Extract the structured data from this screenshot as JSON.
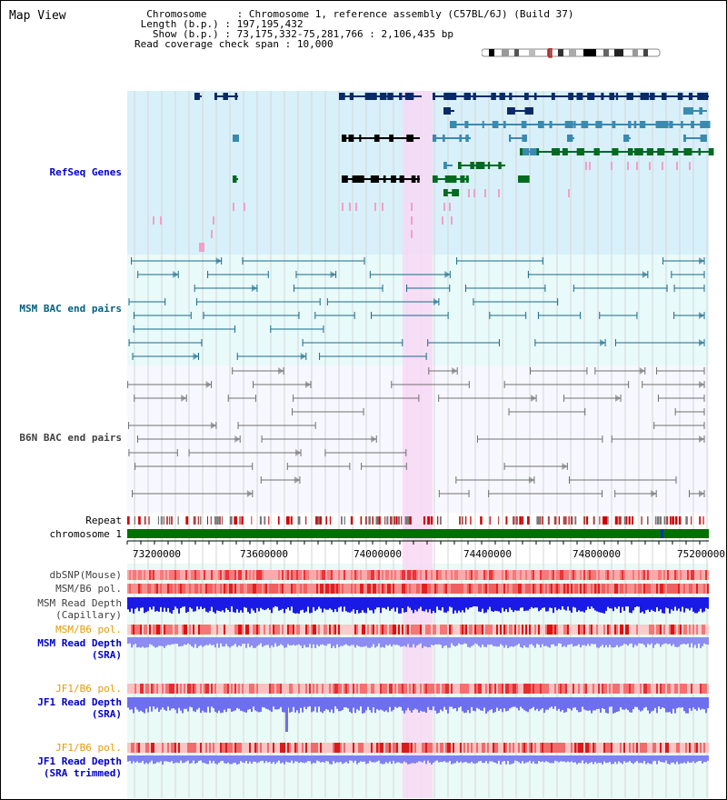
{
  "title": "Map View",
  "info": {
    "chromosome_label": "Chromosome",
    "chromosome_value": "Chromosome 1, reference assembly (C57BL/6J) (Build 37)",
    "length_label": "Length (b.p.)",
    "length_value": "197,195,432",
    "show_label": "Show (b.p.)",
    "show_value": "73,175,332-75,281,766 : 2,106,435 bp",
    "coverage_label": "Read coverage check span",
    "coverage_value": "10,000"
  },
  "tracks": {
    "refseq": "RefSeq Genes",
    "msm_bac": "MSM BAC end pairs",
    "b6n_bac": "B6N BAC end pairs",
    "repeat": "Repeat",
    "chromosome": "chromosome 1",
    "dbsnp": "dbSNP(Mouse)",
    "msm_b6_pol_1": "MSM/B6 pol.",
    "msm_read_depth_cap_1": "MSM Read Depth",
    "msm_read_depth_cap_2": "(Capillary)",
    "msm_b6_pol_2": "MSM/B6 pol.",
    "msm_read_depth_sra_1": "MSM Read Depth",
    "msm_read_depth_sra_2": "(SRA)",
    "jf1_b6_pol_1": "JF1/B6 pol.",
    "jf1_read_depth_sra_1": "JF1 Read Depth",
    "jf1_read_depth_sra_2": "(SRA)",
    "jf1_b6_pol_2": "JF1/B6 pol.",
    "jf1_read_depth_trim_1": "JF1 Read Depth",
    "jf1_read_depth_trim_2": "(SRA trimmed)"
  },
  "axis_ticks": [
    "73200000",
    "73600000",
    "74000000",
    "74400000",
    "74800000",
    "75200000"
  ],
  "colors": {
    "refseq_bg": "#d8f0fa",
    "msm_bg": "#e8fafa",
    "b6n_bg": "#f7f7ff",
    "highlight": "#f8d8f4",
    "refseq_label": "#0000cc",
    "msm_label": "#006080",
    "b6n_label": "#404040",
    "pol_orange": "#e69a00",
    "depth_blue": "#0000cc"
  }
}
